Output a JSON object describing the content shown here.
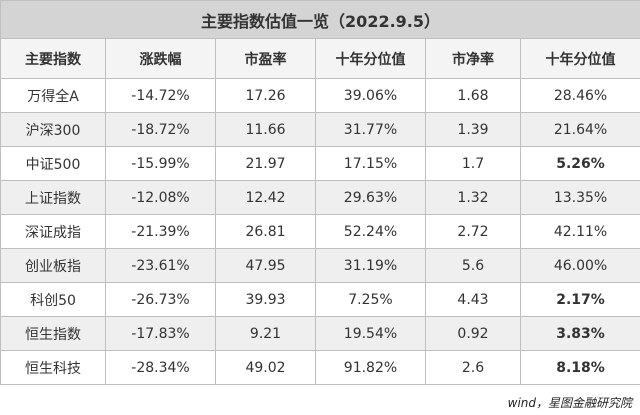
{
  "header": {
    "title": "主要指数估值一览（2022.9.5）"
  },
  "table": {
    "columns": [
      "主要指数",
      "涨跌幅",
      "市盈率",
      "十年分位值",
      "市净率",
      "十年分位值"
    ],
    "rows": [
      [
        "万得全A",
        "-14.72%",
        "17.26",
        "39.06%",
        "1.68",
        "28.46%"
      ],
      [
        "沪深300",
        "-18.72%",
        "11.66",
        "31.77%",
        "1.39",
        "21.64%"
      ],
      [
        "中证500",
        "-15.99%",
        "21.97",
        "17.15%",
        "1.7",
        "5.26%"
      ],
      [
        "上证指数",
        "-12.08%",
        "12.42",
        "29.63%",
        "1.32",
        "13.35%"
      ],
      [
        "深证成指",
        "-21.39%",
        "26.81",
        "52.24%",
        "2.72",
        "42.11%"
      ],
      [
        "创业板指",
        "-23.61%",
        "47.95",
        "31.19%",
        "5.6",
        "46.00%"
      ],
      [
        "科创50",
        "-26.73%",
        "39.93",
        "7.25%",
        "4.43",
        "2.17%"
      ],
      [
        "恒生指数",
        "-17.83%",
        "9.21",
        "19.54%",
        "0.92",
        "3.83%"
      ],
      [
        "恒生科技",
        "-28.34%",
        "49.02",
        "91.82%",
        "2.6",
        "8.18%"
      ]
    ]
  },
  "footer": {
    "source": "wind，星图金融研究院"
  }
}
